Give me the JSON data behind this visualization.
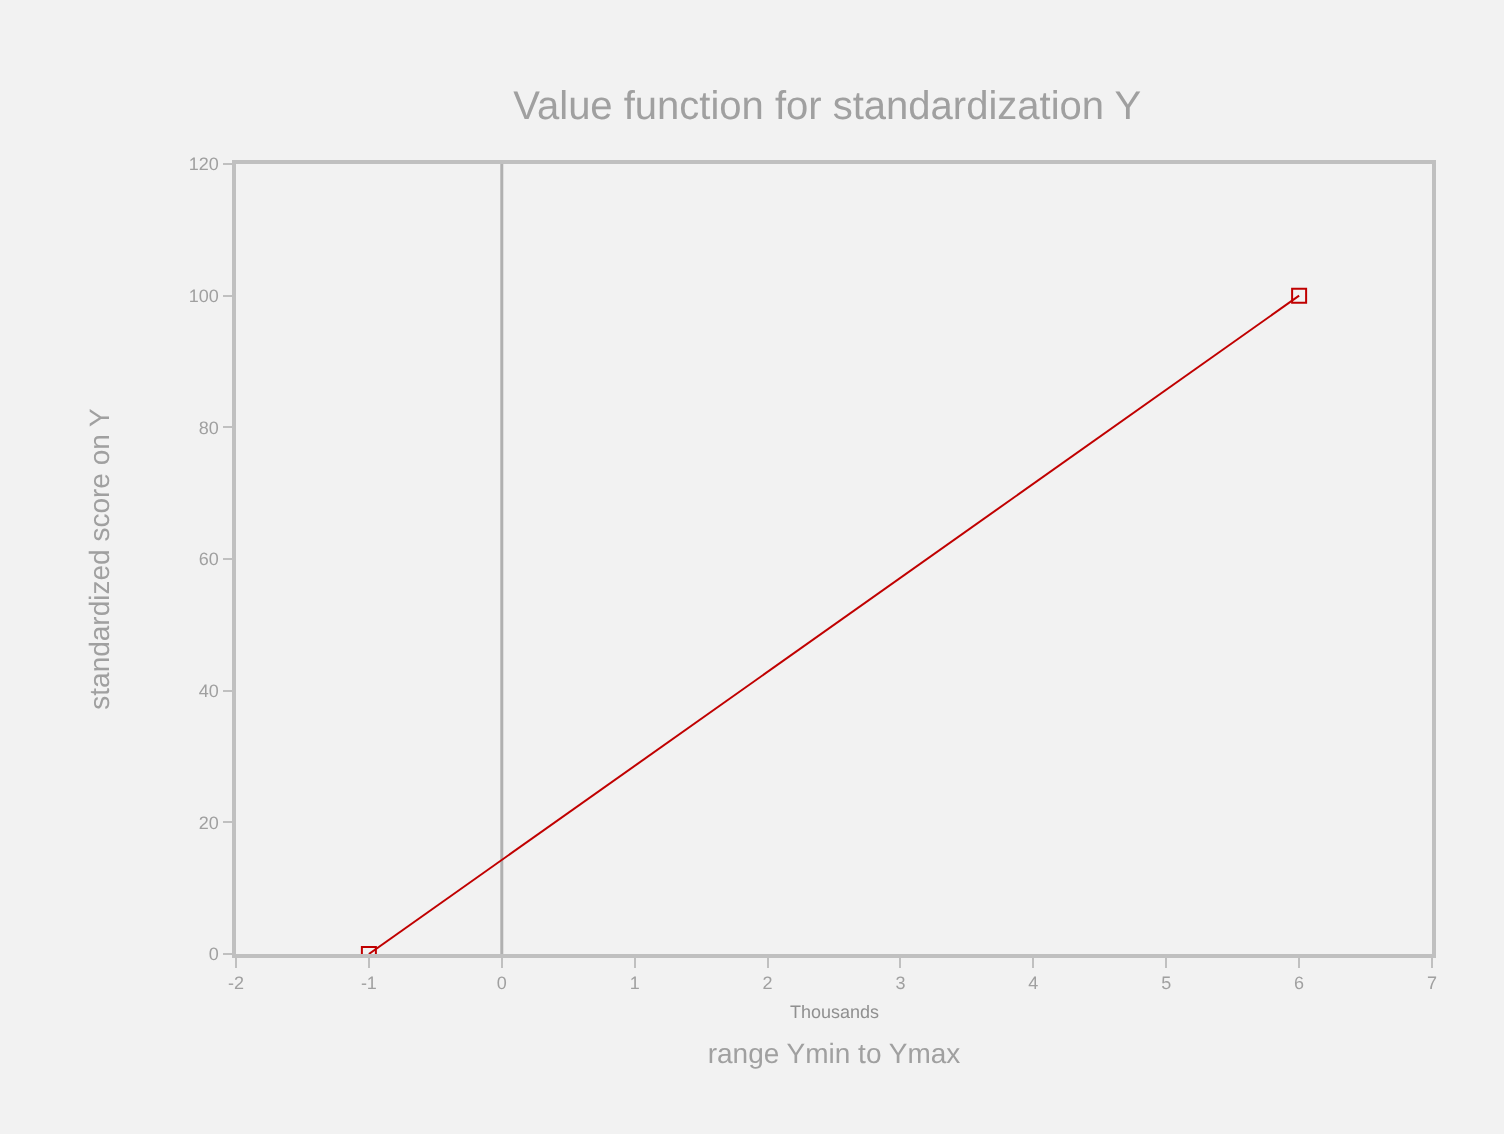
{
  "chart_data": {
    "type": "line",
    "title": "Value function for standardization Y",
    "xlabel": "range Ymin to Ymax",
    "ylabel": "standardized score on Y",
    "annotations": [
      "Thousands"
    ],
    "x": [
      -1,
      6
    ],
    "series": [
      {
        "color": "#c00000",
        "values": [
          0,
          100
        ]
      }
    ],
    "xlim": [
      -2,
      7
    ],
    "xticks": [
      -2,
      -1,
      0,
      1,
      2,
      3,
      4,
      5,
      6,
      7
    ],
    "ylim": [
      0,
      120
    ],
    "yticks": [
      0,
      20,
      40,
      60,
      80,
      100,
      120
    ],
    "ref_lines": [
      {
        "axis": "x",
        "value": 0,
        "color": "#b0b0b0"
      }
    ],
    "marker": "square",
    "line_style": "solid",
    "grid": false
  }
}
